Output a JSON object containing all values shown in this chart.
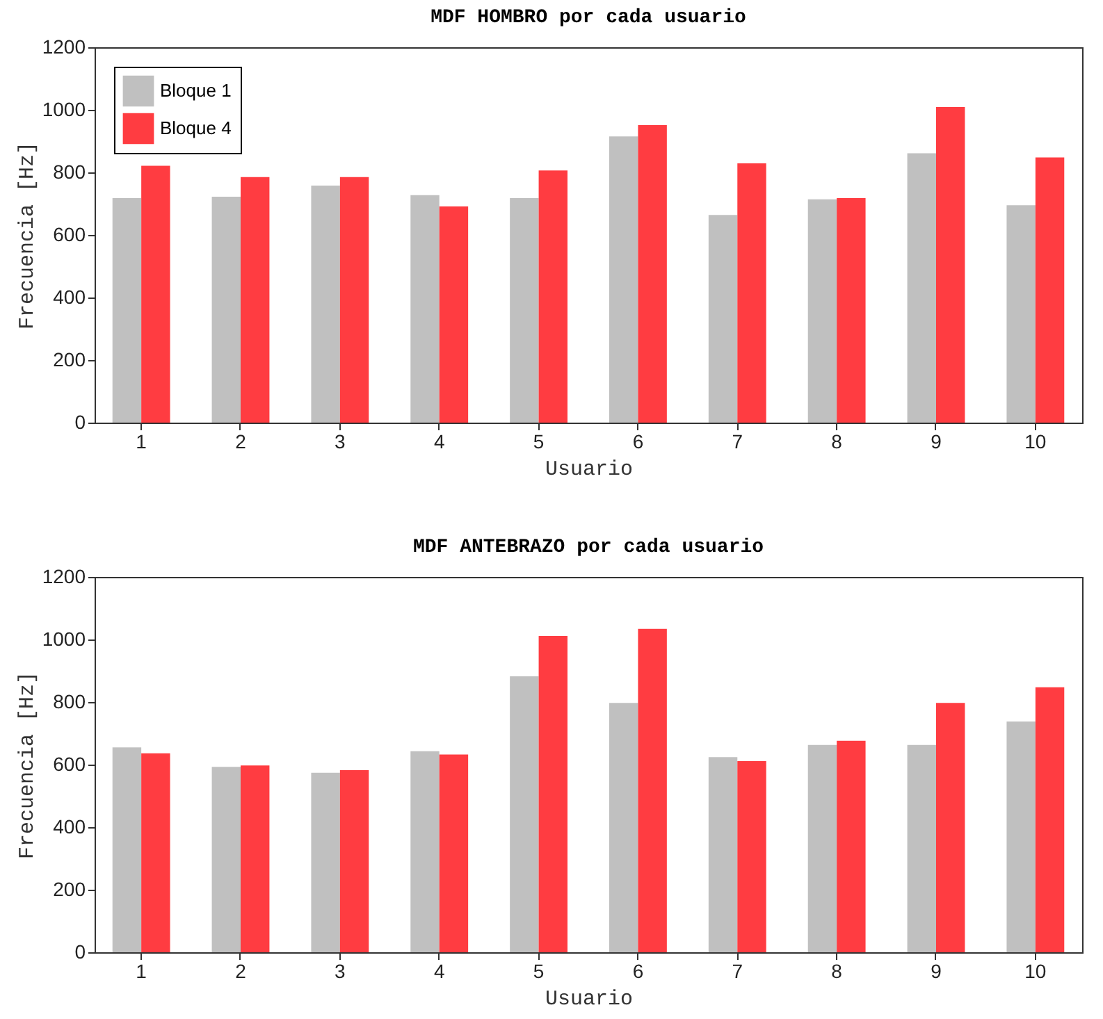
{
  "chart_data": [
    {
      "type": "bar",
      "title": "MDF HOMBRO por cada usuario",
      "xlabel": "Usuario",
      "ylabel": "Frecuencia [Hz]",
      "categories": [
        "1",
        "2",
        "3",
        "4",
        "5",
        "6",
        "7",
        "8",
        "9",
        "10"
      ],
      "series": [
        {
          "name": "Bloque 1",
          "color": "#c0c0c0",
          "values": [
            718,
            722,
            758,
            727,
            718,
            915,
            664,
            714,
            861,
            695
          ]
        },
        {
          "name": "Bloque 4",
          "color": "#ff3c41",
          "values": [
            821,
            785,
            785,
            691,
            806,
            951,
            829,
            718,
            1009,
            848
          ]
        }
      ],
      "ylim": [
        0,
        1200
      ],
      "yticks": [
        0,
        200,
        400,
        600,
        800,
        1000,
        1200
      ],
      "legend": "top left",
      "grid": false
    },
    {
      "type": "bar",
      "title": "MDF ANTEBRAZO por cada usuario",
      "xlabel": "Usuario",
      "ylabel": "Frecuencia [Hz]",
      "categories": [
        "1",
        "2",
        "3",
        "4",
        "5",
        "6",
        "7",
        "8",
        "9",
        "10"
      ],
      "series": [
        {
          "name": "Bloque 1",
          "color": "#c0c0c0",
          "values": [
            655,
            593,
            574,
            643,
            882,
            797,
            624,
            663,
            663,
            738
          ]
        },
        {
          "name": "Bloque 4",
          "color": "#ff3c41",
          "values": [
            636,
            597,
            582,
            632,
            1011,
            1034,
            611,
            676,
            797,
            847
          ]
        }
      ],
      "ylim": [
        0,
        1200
      ],
      "yticks": [
        0,
        200,
        400,
        600,
        800,
        1000,
        1200
      ],
      "legend": "top left",
      "grid": false
    }
  ]
}
